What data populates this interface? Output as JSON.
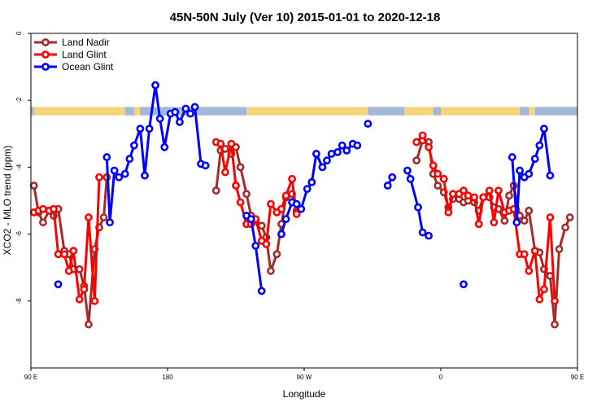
{
  "chart_data": {
    "type": "line",
    "title": "45N-50N July (Ver 10)   2015-01-01 to 2020-12-18",
    "xlabel": "Longitude",
    "ylabel": "XCO2 - MLO trend (ppm)",
    "xlim": [
      90,
      450
    ],
    "ylim": [
      -10,
      0
    ],
    "x_ticks": [
      {
        "value": 90,
        "label": "90 E"
      },
      {
        "value": 180,
        "label": "180"
      },
      {
        "value": 270,
        "label": "90 W"
      },
      {
        "value": 360,
        "label": "0"
      },
      {
        "value": 450,
        "label": "90 E"
      },
      {
        "value": 540,
        "label": "180"
      }
    ],
    "y_ticks": [
      {
        "value": 0,
        "label": "0"
      },
      {
        "value": -2,
        "label": "-2"
      },
      {
        "value": -4,
        "label": "-4"
      },
      {
        "value": -6,
        "label": "-6"
      },
      {
        "value": -8,
        "label": "-8"
      }
    ],
    "legend_position": "top-left",
    "land_ocean_band": {
      "y_top": -2.2,
      "y_bottom": -2.45,
      "land_color": "#f7d57a",
      "ocean_color": "#a4b8dd"
    },
    "series": [
      {
        "name": "Land Nadir",
        "color": "#a52a2a",
        "points": [
          [
            92,
            -4.55
          ],
          [
            95,
            -5.35
          ],
          [
            98,
            -5.65
          ],
          [
            102,
            -5.3
          ],
          [
            105,
            -5.45
          ],
          [
            108,
            -5.25
          ],
          [
            112,
            -6.5
          ],
          [
            115,
            -6.6
          ],
          [
            118,
            -7.05
          ],
          [
            122,
            -7.05
          ],
          [
            125,
            -7.55
          ],
          [
            128,
            -8.7
          ],
          [
            132,
            -6.45
          ],
          [
            135,
            -5.8
          ],
          [
            138,
            -5.5
          ],
          [
            140,
            -4.3
          ],
          [
            212,
            -4.7
          ],
          [
            215,
            -3.5
          ],
          [
            218,
            -3.45
          ],
          [
            222,
            -3.6
          ],
          [
            225,
            -3.4
          ],
          [
            228,
            -4.0
          ],
          [
            232,
            -4.8
          ],
          [
            235,
            -5.45
          ],
          [
            238,
            -5.6
          ],
          [
            242,
            -5.75
          ],
          [
            245,
            -6.1
          ],
          [
            248,
            -7.1
          ],
          [
            252,
            -6.6
          ],
          [
            255,
            -5.7
          ],
          [
            258,
            -4.9
          ],
          [
            262,
            -4.8
          ],
          [
            265,
            -5.3
          ],
          [
            344,
            -3.8
          ],
          [
            348,
            -3.2
          ],
          [
            352,
            -3.25
          ],
          [
            355,
            -4.2
          ],
          [
            358,
            -4.55
          ],
          [
            362,
            -4.75
          ],
          [
            365,
            -5.2
          ],
          [
            368,
            -4.95
          ],
          [
            372,
            -4.95
          ],
          [
            375,
            -5.05
          ],
          [
            378,
            -5.0
          ],
          [
            382,
            -5.05
          ],
          [
            385,
            -5.3
          ],
          [
            388,
            -4.9
          ],
          [
            392,
            -4.9
          ],
          [
            395,
            -5.2
          ],
          [
            398,
            -5.25
          ],
          [
            402,
            -5.6
          ],
          [
            405,
            -4.85
          ],
          [
            408,
            -4.55
          ],
          [
            412,
            -5.45
          ],
          [
            415,
            -5.6
          ],
          [
            418,
            -5.3
          ],
          [
            422,
            -6.5
          ],
          [
            425,
            -6.55
          ],
          [
            428,
            -7.05
          ],
          [
            432,
            -7.25
          ],
          [
            435,
            -8.7
          ],
          [
            438,
            -6.45
          ],
          [
            442,
            -5.8
          ],
          [
            445,
            -5.5
          ]
        ]
      },
      {
        "name": "Land Glint",
        "color": "#ff0000",
        "points": [
          [
            92,
            -5.35
          ],
          [
            95,
            -5.3
          ],
          [
            98,
            -5.25
          ],
          [
            102,
            -5.3
          ],
          [
            105,
            -5.25
          ],
          [
            108,
            -6.6
          ],
          [
            112,
            -6.6
          ],
          [
            115,
            -7.1
          ],
          [
            118,
            -6.5
          ],
          [
            122,
            -7.95
          ],
          [
            125,
            -7.65
          ],
          [
            128,
            -5.5
          ],
          [
            132,
            -8.0
          ],
          [
            135,
            -4.3
          ],
          [
            212,
            -3.25
          ],
          [
            215,
            -3.3
          ],
          [
            218,
            -4.15
          ],
          [
            222,
            -3.3
          ],
          [
            225,
            -4.55
          ],
          [
            228,
            -5.05
          ],
          [
            232,
            -5.7
          ],
          [
            235,
            -5.7
          ],
          [
            238,
            -5.55
          ],
          [
            242,
            -6.2
          ],
          [
            245,
            -6.3
          ],
          [
            248,
            -5.1
          ],
          [
            252,
            -5.35
          ],
          [
            255,
            -5.25
          ],
          [
            258,
            -4.85
          ],
          [
            262,
            -4.35
          ],
          [
            265,
            -5.4
          ],
          [
            344,
            -3.25
          ],
          [
            348,
            -3.05
          ],
          [
            352,
            -3.4
          ],
          [
            355,
            -3.95
          ],
          [
            358,
            -4.2
          ],
          [
            362,
            -4.35
          ],
          [
            365,
            -5.35
          ],
          [
            368,
            -4.8
          ],
          [
            372,
            -4.8
          ],
          [
            375,
            -4.7
          ],
          [
            378,
            -4.85
          ],
          [
            382,
            -4.9
          ],
          [
            385,
            -5.7
          ],
          [
            388,
            -4.9
          ],
          [
            392,
            -4.7
          ],
          [
            395,
            -5.65
          ],
          [
            398,
            -4.7
          ],
          [
            402,
            -5.35
          ],
          [
            405,
            -5.3
          ],
          [
            408,
            -5.25
          ],
          [
            412,
            -6.6
          ],
          [
            415,
            -6.6
          ],
          [
            418,
            -7.1
          ],
          [
            422,
            -6.5
          ],
          [
            425,
            -7.95
          ],
          [
            428,
            -7.65
          ],
          [
            432,
            -5.5
          ],
          [
            435,
            -8.0
          ]
        ]
      },
      {
        "name": "Ocean Glint",
        "color": "#0000ff",
        "points": [
          [
            108,
            -7.5
          ],
          [
            140,
            -3.7
          ],
          [
            142,
            -5.65
          ],
          [
            145,
            -4.1
          ],
          [
            148,
            -4.3
          ],
          [
            152,
            -4.2
          ],
          [
            155,
            -3.75
          ],
          [
            158,
            -3.35
          ],
          [
            162,
            -2.85
          ],
          [
            165,
            -4.25
          ],
          [
            168,
            -2.85
          ],
          [
            172,
            -1.55
          ],
          [
            175,
            -2.55
          ],
          [
            178,
            -3.4
          ],
          [
            182,
            -2.4
          ],
          [
            185,
            -2.35
          ],
          [
            188,
            -2.65
          ],
          [
            192,
            -2.25
          ],
          [
            195,
            -2.4
          ],
          [
            198,
            -2.2
          ],
          [
            202,
            -3.9
          ],
          [
            205,
            -3.95
          ],
          [
            232,
            -5.45
          ],
          [
            235,
            -5.55
          ],
          [
            238,
            -6.35
          ],
          [
            242,
            -7.7
          ],
          [
            255,
            -6.0
          ],
          [
            258,
            -5.55
          ],
          [
            262,
            -5.05
          ],
          [
            265,
            -5.1
          ],
          [
            268,
            -5.25
          ],
          [
            272,
            -4.65
          ],
          [
            275,
            -4.45
          ],
          [
            278,
            -3.6
          ],
          [
            282,
            -4.0
          ],
          [
            285,
            -3.8
          ],
          [
            288,
            -3.6
          ],
          [
            292,
            -3.55
          ],
          [
            295,
            -3.35
          ],
          [
            298,
            -3.5
          ],
          [
            302,
            -3.3
          ],
          [
            305,
            -3.35
          ],
          [
            312,
            -2.7
          ],
          [
            325,
            -4.55
          ],
          [
            328,
            -4.3
          ],
          [
            338,
            -4.1
          ],
          [
            340,
            -4.35
          ],
          [
            345,
            -5.2
          ],
          [
            348,
            -5.95
          ],
          [
            352,
            -6.05
          ],
          [
            375,
            -7.5
          ],
          [
            407,
            -3.7
          ],
          [
            410,
            -5.65
          ],
          [
            412,
            -4.1
          ],
          [
            415,
            -4.3
          ],
          [
            418,
            -4.2
          ],
          [
            422,
            -3.75
          ],
          [
            425,
            -3.35
          ],
          [
            428,
            -2.85
          ],
          [
            432,
            -4.25
          ]
        ]
      }
    ]
  }
}
